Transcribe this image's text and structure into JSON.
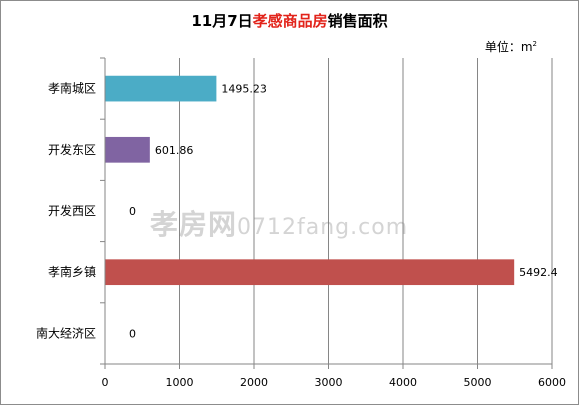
{
  "chart_data": {
    "type": "bar",
    "orientation": "horizontal",
    "title_parts": [
      "11月7日",
      "孝感商品房",
      "销售面积"
    ],
    "unit_label": "单位：m",
    "unit_sup": "2",
    "categories": [
      "孝南城区",
      "开发东区",
      "开发西区",
      "孝南乡镇",
      "南大经济区"
    ],
    "values": [
      1495.23,
      601.86,
      0,
      5492.4,
      0
    ],
    "value_labels": [
      "1495.23",
      "601.86",
      "0",
      "5492.4",
      "0"
    ],
    "bar_colors": [
      "#4bacc6",
      "#8064a2",
      "#4f81bd",
      "#c0504d",
      "#9bbb59"
    ],
    "xlim": [
      0,
      6000
    ],
    "xticks": [
      0,
      1000,
      2000,
      3000,
      4000,
      5000,
      6000
    ],
    "grid": true
  },
  "watermark": {
    "cn": "孝房网",
    "en": "0712fang.com"
  }
}
